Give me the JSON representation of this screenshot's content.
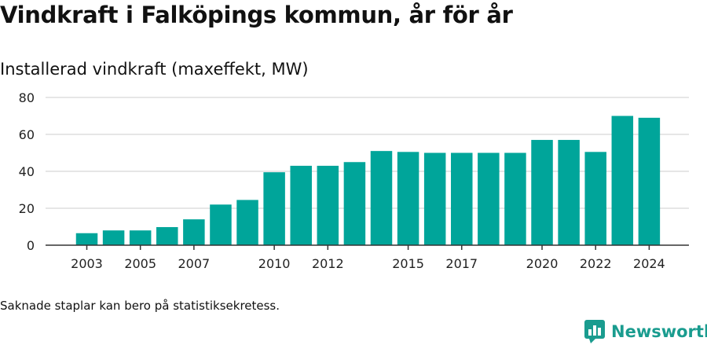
{
  "title": "Vindkraft i Falköpings kommun, år för år",
  "subtitle": "Installerad vindkraft (maxeffekt, MW)",
  "footnote": "Saknade staplar kan bero på statistiksekretess.",
  "brand": {
    "name": "Newsworthy",
    "icon": "newsworthy-logo-icon",
    "color": "#1a9c8f"
  },
  "colors": {
    "bar": "#00a59a",
    "grid": "#dddddd",
    "axis": "#333333"
  },
  "chart_data": {
    "type": "bar",
    "title": "Installerad vindkraft (maxeffekt, MW)",
    "xlabel": "",
    "ylabel": "",
    "categories": [
      2003,
      2004,
      2005,
      2006,
      2007,
      2008,
      2009,
      2010,
      2011,
      2012,
      2013,
      2014,
      2015,
      2016,
      2017,
      2018,
      2019,
      2020,
      2021,
      2022,
      2023,
      2024
    ],
    "values": [
      6.5,
      8,
      8,
      9.8,
      14,
      22,
      24.5,
      39.5,
      43,
      43,
      45,
      51,
      50.5,
      50,
      50,
      50,
      50,
      57,
      57,
      50.5,
      70,
      69
    ],
    "x_tick_labels": [
      "2003",
      "2005",
      "2007",
      "2010",
      "2012",
      "2015",
      "2017",
      "2020",
      "2022",
      "2024"
    ],
    "y_ticks": [
      0,
      20,
      40,
      60,
      80
    ],
    "ylim": [
      0,
      80
    ],
    "grid": true,
    "legend": "none"
  }
}
